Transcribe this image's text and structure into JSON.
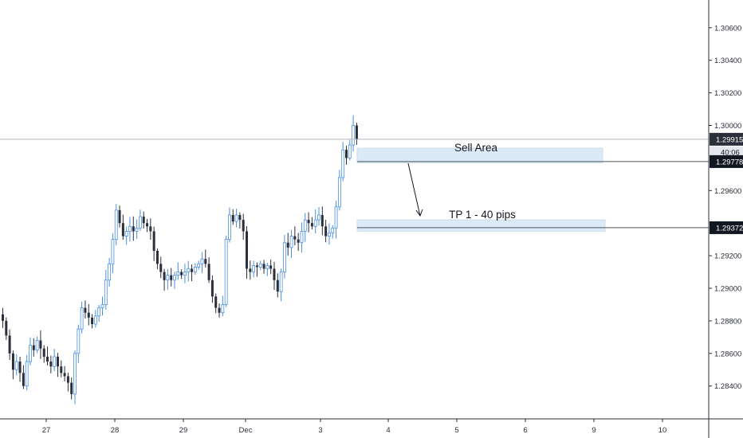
{
  "chart_data": {
    "type": "candlestick",
    "title": "",
    "xlabel": "",
    "ylabel": "",
    "ylim": [
      1.2822,
      1.3074
    ],
    "y_ticks": [
      "1.30600",
      "1.30400",
      "1.30200",
      "1.30000",
      "1.29600",
      "1.29200",
      "1.29000",
      "1.28800",
      "1.28600",
      "1.28400"
    ],
    "x_ticks": [
      "27",
      "28",
      "29",
      "Dec",
      "3",
      "4",
      "5",
      "6",
      "9",
      "10"
    ],
    "grid": false,
    "colors": {
      "up_wick": "#4a90e2",
      "down_body": "#2b2f3a",
      "zone_fill": "#dbeaf6",
      "level_line": "#505359",
      "tag_bg": "#131722",
      "tag_current_bg": "#2b2f3a"
    },
    "current_price": {
      "label": "1.29915",
      "countdown": "40:06"
    },
    "price_levels": [
      {
        "name": "Sell Area",
        "label": "1.29778",
        "value": 1.29778
      },
      {
        "name": "TP 1 - 40 pips",
        "label": "1.29372",
        "value": 1.29372
      }
    ],
    "annotations": [
      {
        "text": "Sell Area",
        "zone_low": 1.2977,
        "zone_high": 1.2986
      },
      {
        "text": "TP 1 - 40 pips",
        "zone_low": 1.2935,
        "zone_high": 1.2942
      }
    ],
    "series": [
      {
        "values": [
          1.288,
          1.2871,
          1.286,
          1.285,
          1.2855,
          1.2848,
          1.284,
          1.2855,
          1.2865,
          1.2862,
          1.2868,
          1.2863,
          1.2858,
          1.2855,
          1.2852,
          1.2858,
          1.2852,
          1.2848,
          1.2846,
          1.2842,
          1.2835,
          1.286,
          1.2875,
          1.2888,
          1.2885,
          1.2882,
          1.2878,
          1.2883,
          1.2888,
          1.289,
          1.2905,
          1.2915,
          1.293,
          1.2948,
          1.294,
          1.2932,
          1.2935,
          1.2938,
          1.2935,
          1.2937,
          1.2944,
          1.294,
          1.2938,
          1.2935,
          1.2923,
          1.2915,
          1.291,
          1.2905,
          1.2908,
          1.2905,
          1.2908,
          1.291,
          1.2908,
          1.291,
          1.2912,
          1.291,
          1.2913,
          1.2915,
          1.2918,
          1.2915,
          1.2905,
          1.2895,
          1.2888,
          1.2885,
          1.289,
          1.293,
          1.2945,
          1.2941,
          1.2945,
          1.2942,
          1.2935,
          1.2912,
          1.291,
          1.2914,
          1.2913,
          1.2915,
          1.2912,
          1.2914,
          1.2912,
          1.2905,
          1.2898,
          1.291,
          1.2928,
          1.2925,
          1.2932,
          1.293,
          1.2928,
          1.2935,
          1.2942,
          1.294,
          1.2938,
          1.2942,
          1.2945,
          1.2938,
          1.2932,
          1.2934,
          1.2937,
          1.295,
          1.2968,
          1.2985,
          1.298,
          1.2988,
          1.3,
          1.29915
        ]
      }
    ]
  }
}
